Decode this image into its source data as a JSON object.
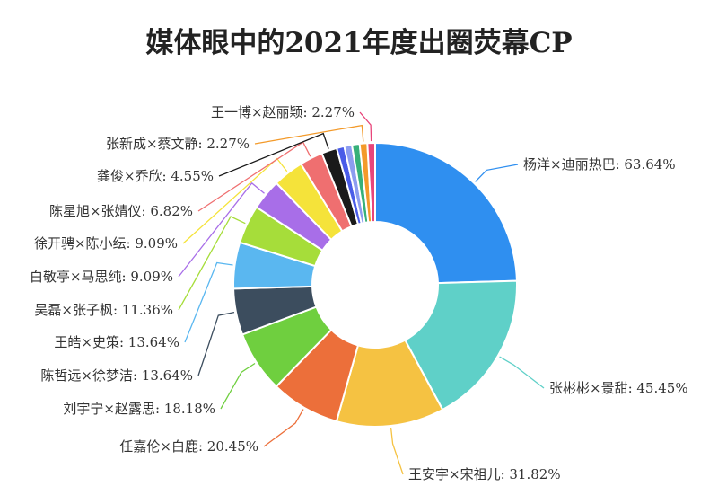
{
  "chart_data": {
    "type": "pie",
    "variant": "donut",
    "title": "媒体眼中的2021年度出圈荧幕CP",
    "slices": [
      {
        "label": "杨洋×迪丽热巴",
        "value": 63.64,
        "color": "#2f8ff0"
      },
      {
        "label": "张彬彬×景甜",
        "value": 45.45,
        "color": "#5fd0c8"
      },
      {
        "label": "王安宇×宋祖儿",
        "value": 31.82,
        "color": "#f5c242"
      },
      {
        "label": "任嘉伦×白鹿",
        "value": 20.45,
        "color": "#ec6f3a"
      },
      {
        "label": "刘宇宁×赵露思",
        "value": 18.18,
        "color": "#6fcf3f"
      },
      {
        "label": "陈哲远×徐梦洁",
        "value": 13.64,
        "color": "#3c4d5e"
      },
      {
        "label": "王皓×史策",
        "value": 13.64,
        "color": "#5ab7f0"
      },
      {
        "label": "吴磊×张子枫",
        "value": 11.36,
        "color": "#a6dd3a"
      },
      {
        "label": "白敬亭×马思纯",
        "value": 9.09,
        "color": "#a86ee8"
      },
      {
        "label": "徐开骋×陈小纭",
        "value": 9.09,
        "color": "#f5e33a"
      },
      {
        "label": "陈星旭×张婧仪",
        "value": 6.82,
        "color": "#ef6f70"
      },
      {
        "label": "龚俊×乔欣",
        "value": 4.55,
        "color": "#1a1a1a"
      },
      {
        "label": "",
        "value": 2.27,
        "color": "#4a5ce8"
      },
      {
        "label": "",
        "value": 2.27,
        "color": "#8c9cf0"
      },
      {
        "label": "",
        "value": 2.27,
        "color": "#36b07a"
      },
      {
        "label": "张新成×蔡文静",
        "value": 2.27,
        "color": "#f39a2a"
      },
      {
        "label": "王一博×赵丽颖",
        "value": 2.27,
        "color": "#e8457a"
      }
    ],
    "value_suffix": "%"
  }
}
